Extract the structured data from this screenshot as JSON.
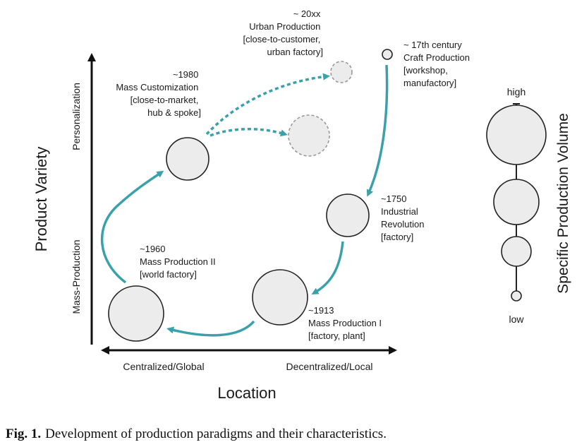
{
  "axes": {
    "y_title": "Product Variety",
    "y_top": "Personalization",
    "y_bottom": "Mass-Production",
    "x_title": "Location",
    "x_left": "Centralized/Global",
    "x_right": "Decentralized/Local"
  },
  "paradigms": [
    {
      "id": "craft",
      "lines": [
        "~ 17th century",
        "Craft Production",
        "[workshop,",
        "manufactory]"
      ]
    },
    {
      "id": "industrial",
      "lines": [
        "~1750",
        "Industrial",
        "Revolution",
        "[factory]"
      ]
    },
    {
      "id": "mass1",
      "lines": [
        "~1913",
        "Mass Production I",
        "[factory, plant]"
      ]
    },
    {
      "id": "mass2",
      "lines": [
        "~1960",
        "Mass Production II",
        "[world factory]"
      ]
    },
    {
      "id": "masscust",
      "lines": [
        "~1980",
        "Mass Customization",
        "[close-to-market,",
        "hub & spoke]"
      ]
    },
    {
      "id": "urban",
      "lines": [
        "~ 20xx",
        "Urban Production",
        "[close-to-customer,",
        "urban factory]"
      ]
    }
  ],
  "volume_scale": {
    "title": "Specific Production Volume",
    "high": "high",
    "low": "low"
  },
  "caption": {
    "label": "Fig. 1.",
    "text": "Development of production paradigms and their characteristics."
  },
  "colors": {
    "arrow": "#3aa1ab",
    "circle_fill": "#ececec",
    "circle_stroke": "#222222",
    "dashed_stroke": "#999999"
  }
}
